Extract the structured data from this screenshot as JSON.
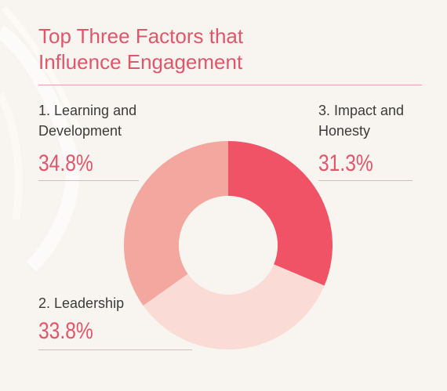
{
  "chart_data": {
    "type": "pie",
    "title_lines": [
      "Top Three Factors that",
      "Influence Engagement"
    ],
    "slices": [
      {
        "number_label": "3. Impact and",
        "number_label_2": "Honesty",
        "value": 31.3,
        "display": "31.3%",
        "color": "#ef5365"
      },
      {
        "number_label": "2. Leadership",
        "number_label_2": "",
        "value": 33.8,
        "display": "33.8%",
        "color": "#fadbd6"
      },
      {
        "number_label": "1. Learning and",
        "number_label_2": "Development",
        "value": 34.8,
        "display": "34.8%",
        "color": "#f3a79f"
      }
    ],
    "donut": true
  },
  "colors": {
    "background": "#f8f4ef",
    "accent": "#e0566a"
  }
}
